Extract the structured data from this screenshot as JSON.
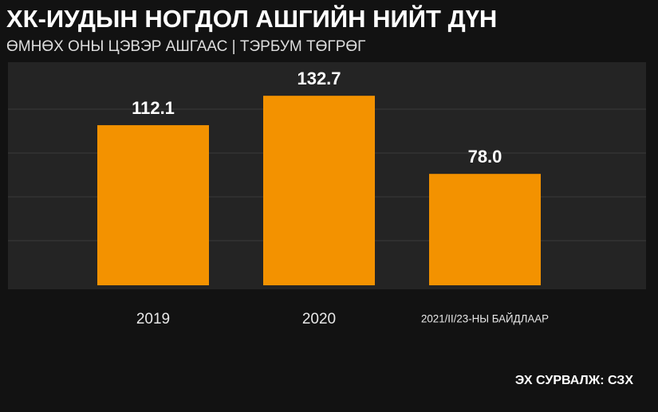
{
  "chart_data": {
    "type": "bar",
    "title": "ХК-ИУДЫН НОГДОЛ АШГИЙН НИЙТ ДҮН",
    "subtitle": "ӨМНӨХ ОНЫ ЦЭВЭР АШГААС | ТЭРБУМ ТӨГРӨГ",
    "categories": [
      "2019",
      "2020",
      "2021/II/23-НЫ БАЙДЛААР"
    ],
    "values": [
      112.1,
      132.7,
      78
    ],
    "value_labels": [
      "112.1",
      "132.7",
      "78.0"
    ],
    "color": "#f39200",
    "ylim": [
      0,
      154
    ],
    "source": "ЭХ СУРВАЛЖ: СЗХ"
  }
}
